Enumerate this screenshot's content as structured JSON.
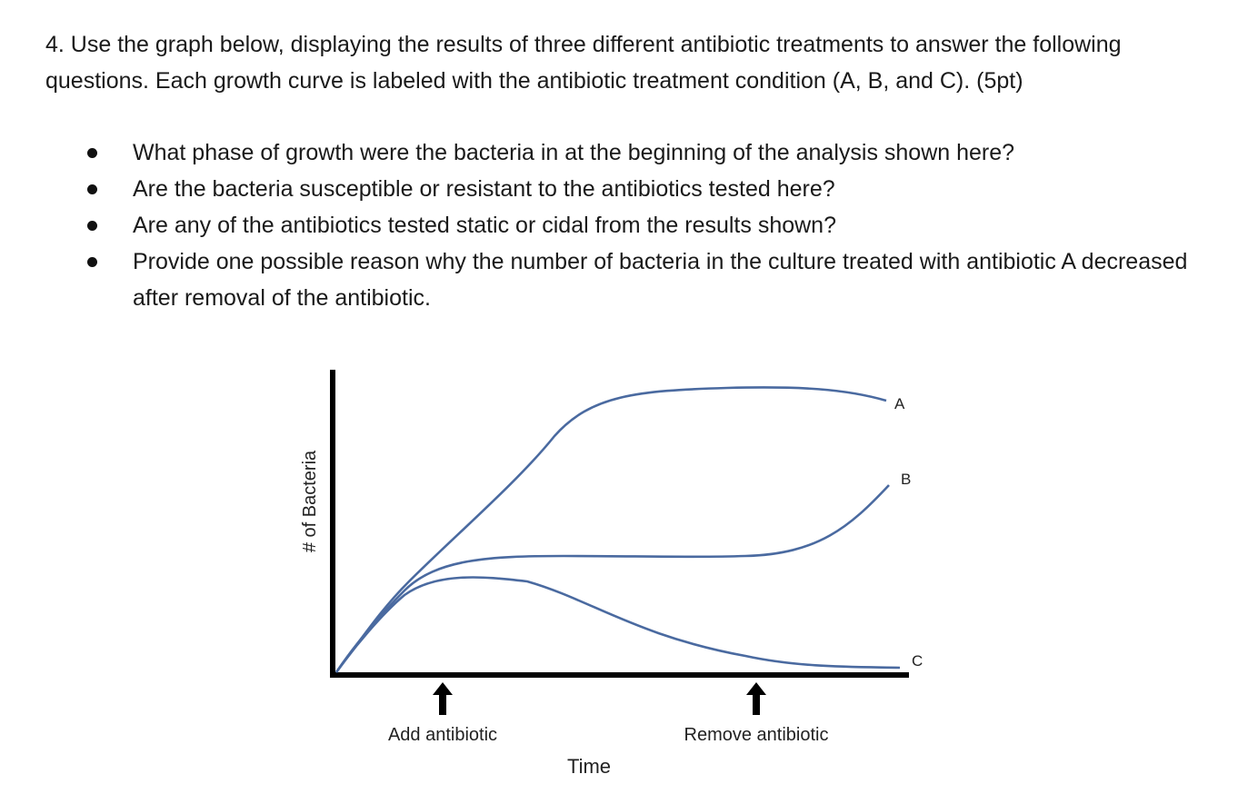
{
  "question": {
    "intro": "4. Use the graph below, displaying the results of three different antibiotic treatments to answer the following questions. Each growth curve is labeled with the antibiotic treatment condition (A, B, and C). (5pt)",
    "bullets": [
      {
        "text": "What phase of growth were the bacteria in at the beginning of the analysis shown here?"
      },
      {
        "text": "Are the bacteria susceptible or resistant to the antibiotics tested here?"
      },
      {
        "text": "Are any of the antibiotics tested static or cidal from the results shown?"
      },
      {
        "text": "Provide one possible reason why the number of bacteria in the culture treated with antibiotic A decreased after removal of the antibiotic."
      }
    ]
  },
  "chart_data": {
    "type": "line",
    "title": "",
    "xlabel": "Time",
    "ylabel": "# of Bacteria",
    "grid": false,
    "series": [
      {
        "name": "A"
      },
      {
        "name": "B"
      },
      {
        "name": "C"
      }
    ],
    "annotations": [
      {
        "text": "Add antibiotic",
        "marker": "up-arrow"
      },
      {
        "text": "Remove antibiotic",
        "marker": "up-arrow"
      }
    ],
    "colors": {
      "curve": "#4a6aa0",
      "axis": "#000000"
    }
  }
}
